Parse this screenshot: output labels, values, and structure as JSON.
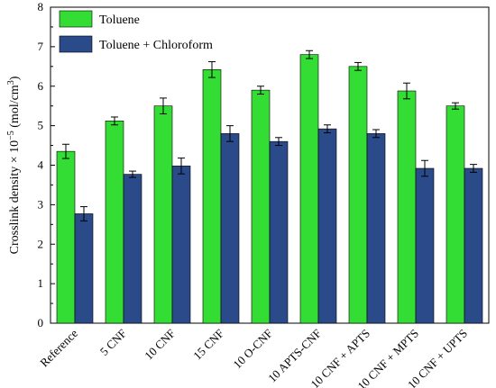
{
  "chart_data": {
    "type": "bar",
    "categories": [
      "Reference",
      "5 CNF",
      "10 CNF",
      "15 CNF",
      "10 O-CNF",
      "10 APTS-CNF",
      "10 CNF + APTS",
      "10 CNF + MPTS",
      "10 CNF + UPTS"
    ],
    "series": [
      {
        "name": "Toluene",
        "color": "#33dd33",
        "values": [
          4.35,
          5.12,
          5.5,
          6.42,
          5.9,
          6.8,
          6.5,
          5.88,
          5.5
        ],
        "errors": [
          0.18,
          0.1,
          0.2,
          0.2,
          0.1,
          0.1,
          0.1,
          0.2,
          0.08
        ]
      },
      {
        "name": "Toluene + Chloroform",
        "color": "#2a4a8a",
        "values": [
          2.77,
          3.77,
          3.98,
          4.8,
          4.6,
          4.92,
          4.8,
          3.92,
          3.92
        ],
        "errors": [
          0.18,
          0.08,
          0.2,
          0.2,
          0.1,
          0.1,
          0.1,
          0.2,
          0.1
        ]
      }
    ],
    "ylabel_prefix": "Crosslink density × 10",
    "ylabel_exponent": "−5",
    "ylabel_unit": " (mol/cm",
    "ylabel_unit_exponent": "3",
    "ylabel_suffix": ")",
    "ylim": [
      0,
      8
    ],
    "yticks": [
      "0",
      "1",
      "2",
      "3",
      "4",
      "5",
      "6",
      "7",
      "8"
    ],
    "legend_position": "top-left",
    "grid": false
  }
}
